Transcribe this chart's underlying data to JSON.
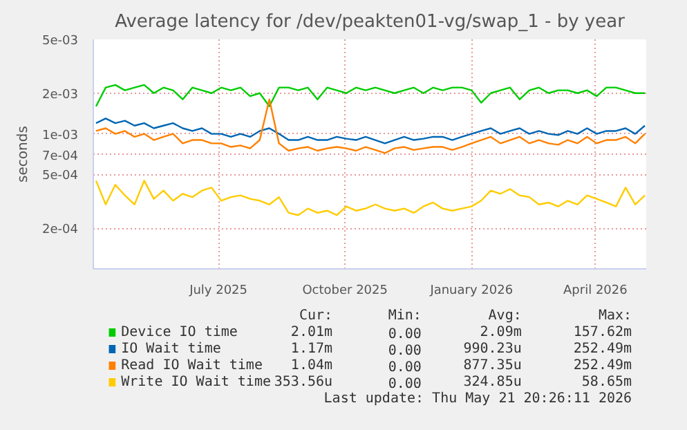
{
  "chart_data": {
    "type": "line",
    "title": "Average latency for /dev/peakten01-vg/swap_1 - by year",
    "ylabel": "seconds",
    "log": true,
    "grid": true,
    "legend": "bottom",
    "marker": "none",
    "line_style": "solid",
    "x": [
      "2025-04-03",
      "2025-04-10",
      "2025-04-17",
      "2025-04-24",
      "2025-05-01",
      "2025-05-08",
      "2025-05-15",
      "2025-05-22",
      "2025-05-29",
      "2025-06-05",
      "2025-06-12",
      "2025-06-19",
      "2025-06-26",
      "2025-07-03",
      "2025-07-10",
      "2025-07-17",
      "2025-07-24",
      "2025-07-31",
      "2025-08-07",
      "2025-08-14",
      "2025-08-21",
      "2025-08-28",
      "2025-09-04",
      "2025-09-11",
      "2025-09-18",
      "2025-09-25",
      "2025-10-02",
      "2025-10-09",
      "2025-10-16",
      "2025-10-23",
      "2025-10-30",
      "2025-11-06",
      "2025-11-13",
      "2025-11-20",
      "2025-11-27",
      "2025-12-04",
      "2025-12-11",
      "2025-12-18",
      "2025-12-25",
      "2026-01-01",
      "2026-01-08",
      "2026-01-15",
      "2026-01-22",
      "2026-01-29",
      "2026-02-05",
      "2026-02-12",
      "2026-02-19",
      "2026-02-26",
      "2026-03-05",
      "2026-03-12",
      "2026-03-19",
      "2026-03-26",
      "2026-04-02",
      "2026-04-09",
      "2026-04-16",
      "2026-04-23",
      "2026-04-30",
      "2026-05-07"
    ],
    "xlim": [
      "2025-04-01",
      "2026-05-08"
    ],
    "xticks": [
      {
        "value": "2025-07-01",
        "label": "July 2025"
      },
      {
        "value": "2025-10-01",
        "label": "October 2025"
      },
      {
        "value": "2026-01-01",
        "label": "January 2026"
      },
      {
        "value": "2026-04-01",
        "label": "April 2026"
      }
    ],
    "ylim": [
      0.0001,
      0.005
    ],
    "yticks": [
      {
        "value": 0.0002,
        "label": "2e-04"
      },
      {
        "value": 0.0005,
        "label": "5e-04"
      },
      {
        "value": 0.0007,
        "label": "7e-04"
      },
      {
        "value": 0.001,
        "label": "1e-03"
      },
      {
        "value": 0.002,
        "label": "2e-03"
      },
      {
        "value": 0.005,
        "label": "5e-03"
      }
    ],
    "series": [
      {
        "name": "Device IO time",
        "color": "#00cc00",
        "values": [
          0.0016,
          0.0022,
          0.0023,
          0.0021,
          0.0022,
          0.0023,
          0.002,
          0.0022,
          0.0021,
          0.0018,
          0.0022,
          0.0021,
          0.002,
          0.0022,
          0.0021,
          0.0022,
          0.0019,
          0.002,
          0.0016,
          0.0022,
          0.0022,
          0.0021,
          0.0022,
          0.0018,
          0.0022,
          0.0021,
          0.002,
          0.0022,
          0.0021,
          0.0022,
          0.0021,
          0.002,
          0.0021,
          0.0022,
          0.002,
          0.0022,
          0.0021,
          0.0022,
          0.0022,
          0.0021,
          0.0017,
          0.002,
          0.0021,
          0.0022,
          0.0018,
          0.0021,
          0.0022,
          0.002,
          0.0021,
          0.0021,
          0.002,
          0.0021,
          0.0019,
          0.0022,
          0.0022,
          0.0021,
          0.002,
          0.002
        ]
      },
      {
        "name": "IO Wait time",
        "color": "#0066b3",
        "values": [
          0.0012,
          0.0013,
          0.0012,
          0.00125,
          0.00115,
          0.0012,
          0.0011,
          0.00115,
          0.0012,
          0.0011,
          0.00105,
          0.0011,
          0.001,
          0.001,
          0.00095,
          0.001,
          0.00095,
          0.00105,
          0.0011,
          0.001,
          0.0009,
          0.0009,
          0.00095,
          0.0009,
          0.0009,
          0.00095,
          0.00092,
          0.0009,
          0.00095,
          0.0009,
          0.00085,
          0.0009,
          0.00095,
          0.0009,
          0.00092,
          0.00095,
          0.00095,
          0.0009,
          0.00095,
          0.001,
          0.00105,
          0.0011,
          0.001,
          0.00105,
          0.0011,
          0.001,
          0.00105,
          0.001,
          0.00098,
          0.00105,
          0.001,
          0.0011,
          0.001,
          0.00105,
          0.00105,
          0.0011,
          0.001,
          0.00115
        ]
      },
      {
        "name": "Read IO Wait time",
        "color": "#ff8000",
        "values": [
          0.00105,
          0.0011,
          0.001,
          0.00105,
          0.00095,
          0.001,
          0.0009,
          0.00095,
          0.001,
          0.00085,
          0.0009,
          0.0009,
          0.00085,
          0.00085,
          0.0008,
          0.00082,
          0.00078,
          0.0009,
          0.0018,
          0.00085,
          0.00075,
          0.00078,
          0.0008,
          0.00075,
          0.00078,
          0.0008,
          0.00078,
          0.00075,
          0.0008,
          0.00076,
          0.00072,
          0.00078,
          0.0008,
          0.00076,
          0.00078,
          0.0008,
          0.0008,
          0.00076,
          0.0008,
          0.00085,
          0.0009,
          0.00095,
          0.00085,
          0.0009,
          0.00095,
          0.00085,
          0.0009,
          0.00085,
          0.00083,
          0.0009,
          0.00085,
          0.00095,
          0.00085,
          0.0009,
          0.0009,
          0.00095,
          0.00085,
          0.001
        ]
      },
      {
        "name": "Write IO Wait time",
        "color": "#ffcc00",
        "values": [
          0.00045,
          0.0003,
          0.00042,
          0.00035,
          0.0003,
          0.00045,
          0.00033,
          0.00038,
          0.00032,
          0.00036,
          0.00034,
          0.00038,
          0.0004,
          0.00032,
          0.00034,
          0.00035,
          0.00033,
          0.00032,
          0.0003,
          0.00034,
          0.00026,
          0.00025,
          0.00028,
          0.00026,
          0.00027,
          0.00025,
          0.00029,
          0.00027,
          0.00028,
          0.0003,
          0.00028,
          0.00027,
          0.00028,
          0.00026,
          0.00029,
          0.00031,
          0.00028,
          0.00027,
          0.00028,
          0.00029,
          0.00032,
          0.00038,
          0.00036,
          0.00039,
          0.00035,
          0.00034,
          0.0003,
          0.00031,
          0.00029,
          0.00032,
          0.0003,
          0.00035,
          0.00033,
          0.00031,
          0.00029,
          0.0004,
          0.0003,
          0.00035
        ]
      }
    ],
    "annotations": [
      "Cur:",
      "Min:",
      "Avg:",
      "Max:",
      "2.01m",
      "0.00",
      "2.09m",
      "157.62m",
      "1.17m",
      "0.00",
      "990.23u",
      "252.49m",
      "1.04m",
      "0.00",
      "877.35u",
      "252.49m",
      "353.56u",
      "0.00",
      "324.85u",
      "58.65m",
      "Last update: Thu May 21 20:26:11 2026"
    ]
  }
}
